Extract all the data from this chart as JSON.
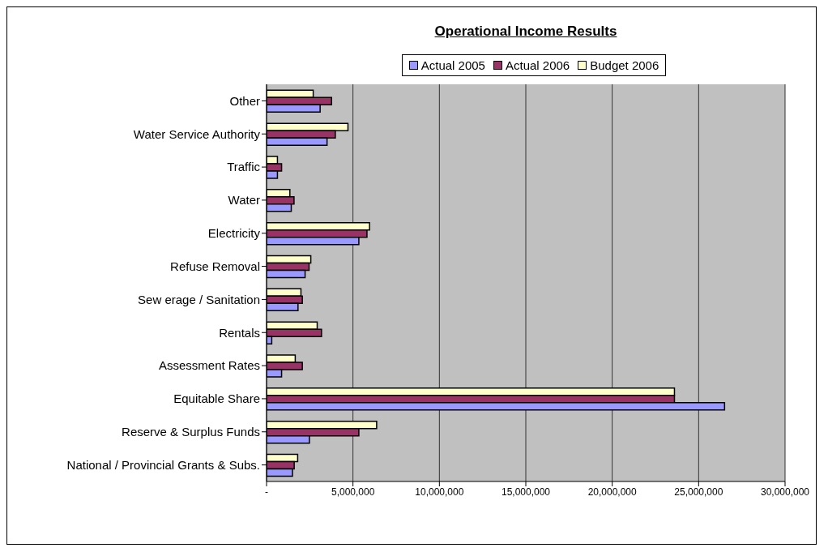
{
  "chart_data": {
    "type": "bar",
    "orientation": "horizontal",
    "title": "Operational Income Results",
    "categories": [
      "Other",
      "Water Service Authority",
      "Traffic",
      "Water",
      "Electricity",
      "Refuse Removal",
      "Sew erage / Sanitation",
      "Rentals",
      "Assessment Rates",
      "Equitable Share",
      "Reserve & Surplus Funds",
      "National / Provincial Grants & Subs."
    ],
    "series": [
      {
        "name": "Actual 2005",
        "color": "#9999ff",
        "values": [
          3100000,
          3500000,
          630000,
          1430000,
          5340000,
          2230000,
          1820000,
          300000,
          870000,
          26500000,
          2480000,
          1500000
        ]
      },
      {
        "name": "Actual 2006",
        "color": "#993366",
        "values": [
          3760000,
          3980000,
          870000,
          1590000,
          5810000,
          2460000,
          2070000,
          3180000,
          2070000,
          23600000,
          5340000,
          1600000
        ]
      },
      {
        "name": "Budget 2006",
        "color": "#ffffcc",
        "values": [
          2700000,
          4710000,
          630000,
          1350000,
          5960000,
          2560000,
          1990000,
          2930000,
          1660000,
          23600000,
          6370000,
          1800000
        ]
      }
    ],
    "xlim": [
      0,
      30000000
    ],
    "xticks": [
      {
        "value": 0,
        "label": "-"
      },
      {
        "value": 5000000,
        "label": "5,000,000"
      },
      {
        "value": 10000000,
        "label": "10,000,000"
      },
      {
        "value": 15000000,
        "label": "15,000,000"
      },
      {
        "value": 20000000,
        "label": "20,000,000"
      },
      {
        "value": 25000000,
        "label": "25,000,000"
      },
      {
        "value": 30000000,
        "label": "30,000,000"
      }
    ],
    "grid": "x",
    "legend": "top"
  }
}
